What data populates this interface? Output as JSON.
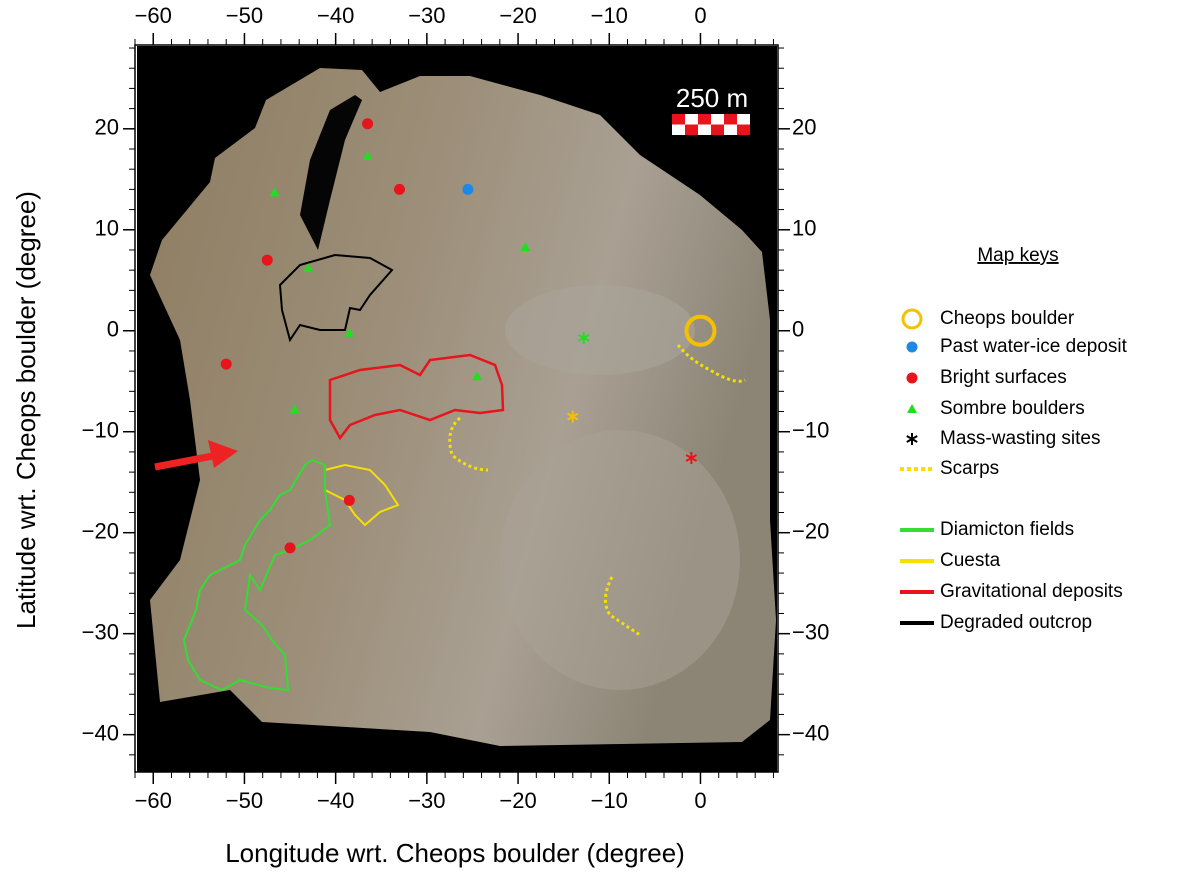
{
  "map": {
    "x_label": "Longitude wrt. Cheops boulder (degree)",
    "y_label": "Latitude  wrt. Cheops boulder (degree)",
    "xlim": [
      -62,
      8.5
    ],
    "ylim": [
      -43.7,
      28.3
    ],
    "xticks": [
      {
        "value": -60,
        "label": "−60"
      },
      {
        "value": -50,
        "label": "−50"
      },
      {
        "value": -40,
        "label": "−40"
      },
      {
        "value": -30,
        "label": "−30"
      },
      {
        "value": -20,
        "label": "−20"
      },
      {
        "value": -10,
        "label": "−10"
      },
      0
    ],
    "yticks": [
      {
        "value": -40,
        "label": "−40"
      },
      {
        "value": -30,
        "label": "−30"
      },
      {
        "value": -20,
        "label": "−20"
      },
      {
        "value": -10,
        "label": "−10"
      },
      0,
      10,
      20
    ],
    "scale_bar": "250 m",
    "legend": {
      "title": "Map keys",
      "items": [
        {
          "label": "Cheops boulder",
          "symbol": "circle-open",
          "color": "#f5c000",
          "points": [
            {
              "lon": 0,
              "lat": 0
            }
          ]
        },
        {
          "label": "Past water-ice deposit",
          "symbol": "circle",
          "color": "#1e88e5",
          "points": [
            {
              "lon": -25.5,
              "lat": 14
            }
          ]
        },
        {
          "label": "Bright surfaces",
          "symbol": "circle",
          "color": "#e8141c",
          "points": [
            {
              "lon": -36.5,
              "lat": 20.5
            },
            {
              "lon": -33,
              "lat": 14
            },
            {
              "lon": -47.5,
              "lat": 7
            },
            {
              "lon": -52,
              "lat": -3.3
            },
            {
              "lon": -38.5,
              "lat": -16.8
            },
            {
              "lon": -45,
              "lat": -21.5
            }
          ]
        },
        {
          "label": "Sombre boulders",
          "symbol": "triangle",
          "color": "#22dd22",
          "points": [
            {
              "lon": -36.5,
              "lat": 17.3
            },
            {
              "lon": -46.7,
              "lat": 13.7
            },
            {
              "lon": -43,
              "lat": 6.2
            },
            {
              "lon": -38.5,
              "lat": -0.2
            },
            {
              "lon": -19.2,
              "lat": 8.3
            },
            {
              "lon": -24.5,
              "lat": -4.5
            },
            {
              "lon": -44.5,
              "lat": -7.8
            }
          ]
        },
        {
          "label": "Mass-wasting sites",
          "symbol": "asterisk",
          "color": "#000000",
          "points": [
            {
              "lon": -12.8,
              "lat": -0.7,
              "color": "#22dd22"
            },
            {
              "lon": -14,
              "lat": -8.5,
              "color": "#f5c000"
            },
            {
              "lon": -1,
              "lat": -12.6,
              "color": "#e8141c"
            }
          ]
        },
        {
          "label": "Scarps",
          "symbol": "dotted",
          "color": "#f5e000"
        },
        {
          "label": "Diamicton fields",
          "symbol": "line",
          "color": "#33dd33"
        },
        {
          "label": "Cuesta",
          "symbol": "line",
          "color": "#f5e000"
        },
        {
          "label": "Gravitational deposits",
          "symbol": "line",
          "color": "#e8141c"
        },
        {
          "label": "Degraded outcrop",
          "symbol": "line",
          "color": "#000000"
        }
      ]
    }
  }
}
